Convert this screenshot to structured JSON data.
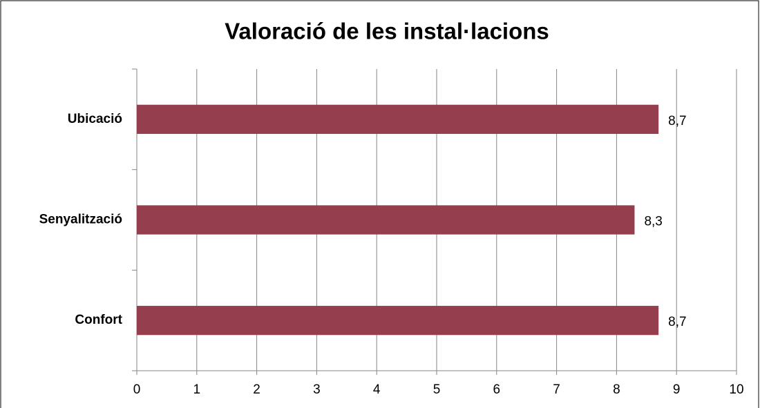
{
  "chart_data": {
    "type": "barh",
    "title": "Valoració de les instal·lacions",
    "categories": [
      "Ubicació",
      "Senyalització",
      "Confort"
    ],
    "values": [
      8.7,
      8.3,
      8.7
    ],
    "value_labels": [
      "8,7",
      "8,3",
      "8,7"
    ],
    "color": "#953f4e",
    "xlim": [
      0,
      10
    ],
    "xticks": [
      0,
      1,
      2,
      3,
      4,
      5,
      6,
      7,
      8,
      9,
      10
    ],
    "grid": true
  }
}
